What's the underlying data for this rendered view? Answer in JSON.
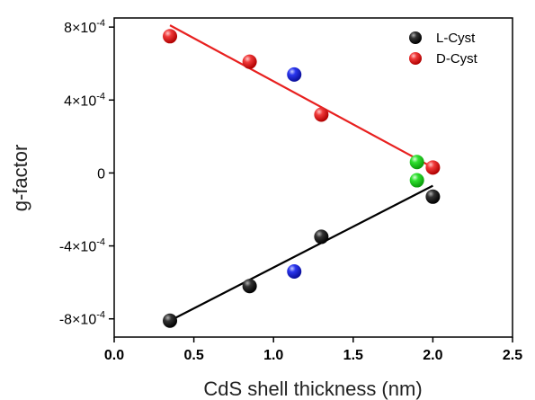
{
  "chart_data": {
    "type": "scatter",
    "xlabel": "CdS shell thickness (nm)",
    "ylabel": "g-factor",
    "xlim": [
      0.0,
      2.5
    ],
    "ylim": [
      -0.0009,
      0.00085
    ],
    "x_ticks": [
      0.0,
      0.5,
      1.0,
      1.5,
      2.0,
      2.5
    ],
    "x_tick_labels": [
      "0.0",
      "0.5",
      "1.0",
      "1.5",
      "2.0",
      "2.5"
    ],
    "y_ticks": [
      0.0008,
      0.0004,
      0,
      -0.0004,
      -0.0008
    ],
    "y_tick_labels": [
      {
        "base": "8×10",
        "exp": "-4"
      },
      {
        "base": "4×10",
        "exp": "-4"
      },
      {
        "base": "0",
        "exp": ""
      },
      {
        "base": "-4×10",
        "exp": "-4"
      },
      {
        "base": "-8×10",
        "exp": "-4"
      }
    ],
    "grid": false,
    "legend_position": "top-right",
    "series": [
      {
        "name": "L-Cyst",
        "color": "#000000",
        "points": [
          [
            0.35,
            -0.00081
          ],
          [
            0.85,
            -0.00062
          ],
          [
            1.3,
            -0.00035
          ],
          [
            2.0,
            -0.00013
          ]
        ],
        "fit_line": {
          "color": "#000000",
          "x": [
            0.35,
            2.0
          ],
          "y": [
            -0.00081,
            -7e-05
          ]
        }
      },
      {
        "name": "D-Cyst",
        "color": "#e8201f",
        "points": [
          [
            0.35,
            0.00075
          ],
          [
            0.85,
            0.00061
          ],
          [
            1.3,
            0.00032
          ],
          [
            2.0,
            3e-05
          ]
        ],
        "fit_line": {
          "color": "#e8201f",
          "x": [
            0.35,
            2.0
          ],
          "y": [
            0.00081,
            3e-05
          ]
        }
      },
      {
        "color": "#1f2be8",
        "points": [
          [
            1.13,
            0.00054
          ],
          [
            1.13,
            -0.00054
          ]
        ]
      },
      {
        "color": "#22dd22",
        "points": [
          [
            1.9,
            6e-05
          ],
          [
            1.9,
            -4e-05
          ]
        ]
      }
    ]
  }
}
